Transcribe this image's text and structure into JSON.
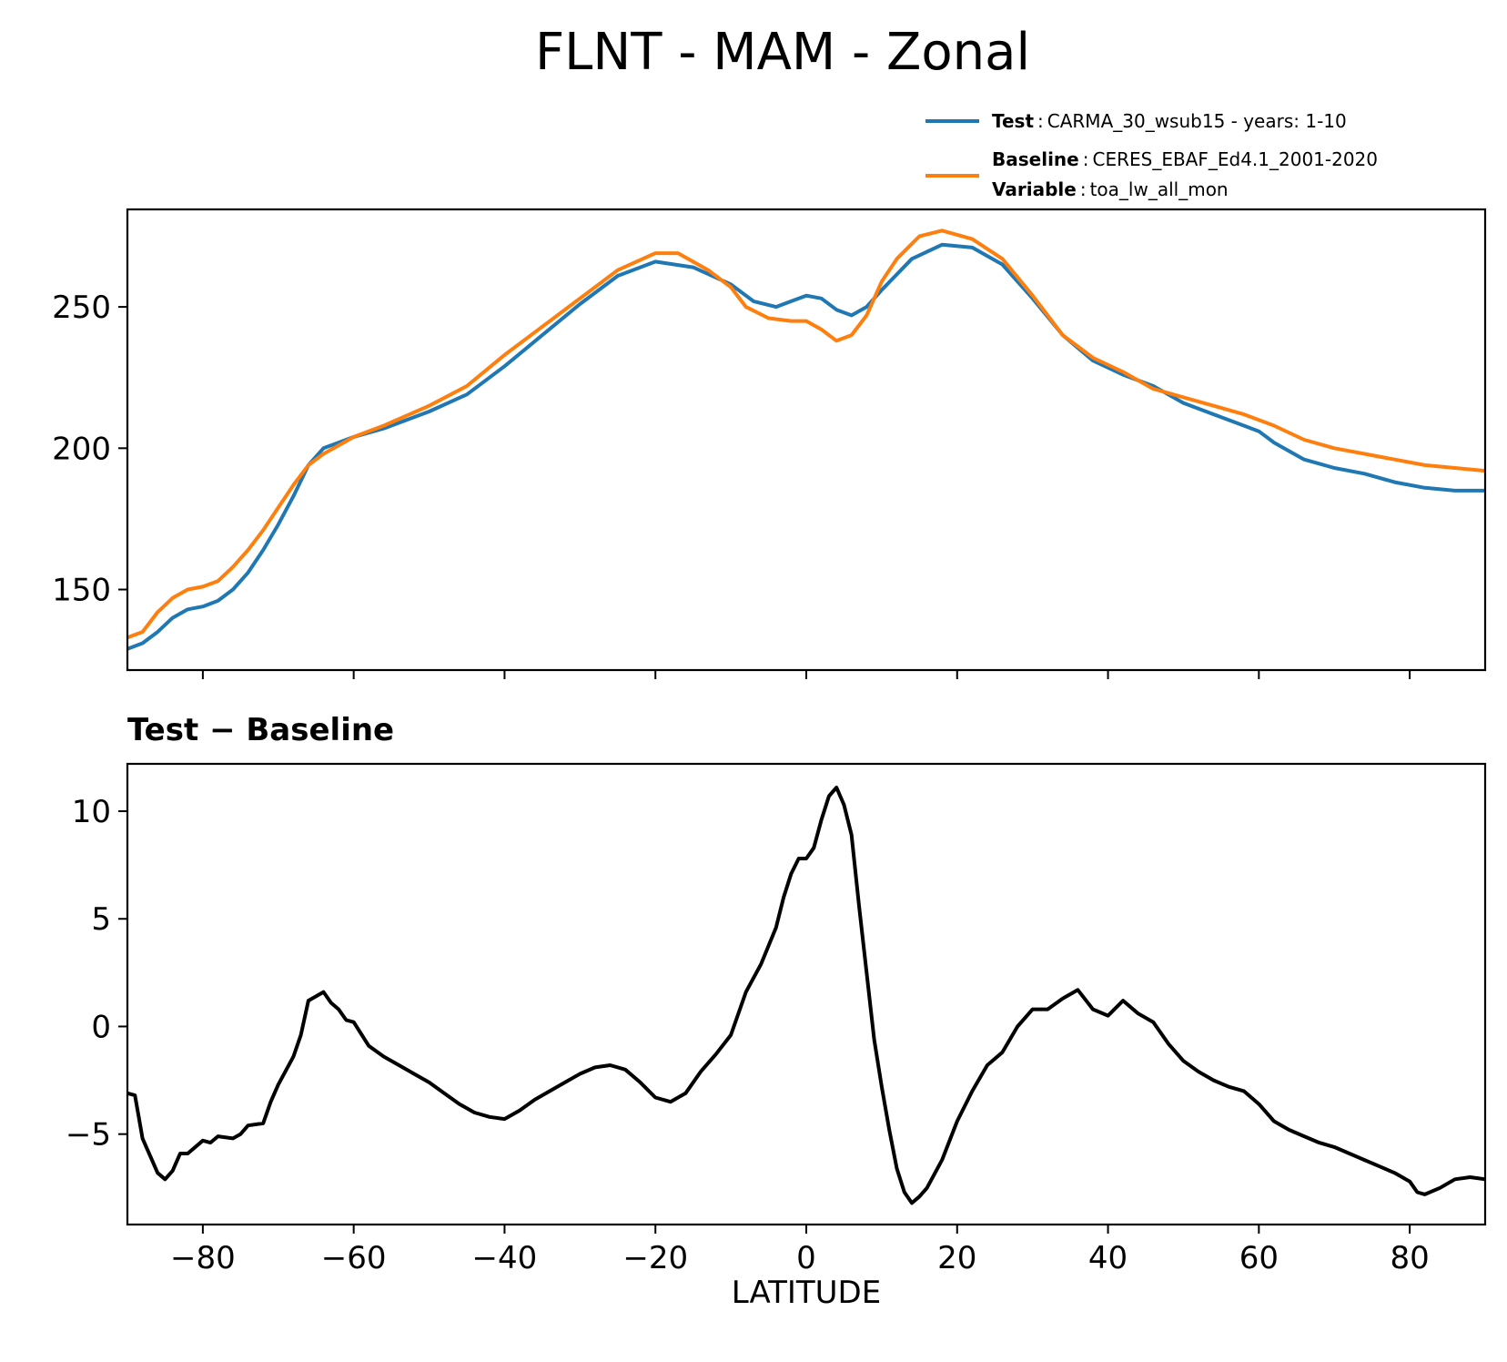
{
  "figure": {
    "title": "FLNT - MAM - Zonal"
  },
  "legend": {
    "placement": "above-right of top panel",
    "test_key": "Test",
    "test_value": "CARMA_30_wsub15 - years: 1-10",
    "baseline_key": "Baseline",
    "baseline_value": "CERES_EBAF_Ed4.1_2001-2020",
    "variable_key": "Variable",
    "variable_value": "toa_lw_all_mon",
    "separator": ":"
  },
  "chart_data": [
    {
      "type": "line",
      "title": "",
      "xlabel": "",
      "ylabel": "",
      "xlim": [
        -90,
        90
      ],
      "ylim": [
        121.5,
        284.5
      ],
      "yticks": [
        150,
        200,
        250
      ],
      "xticks": [
        -80,
        -60,
        -40,
        -20,
        0,
        20,
        40,
        60,
        80
      ],
      "grid": false,
      "series": [
        {
          "name": "Test",
          "color": "#1f77b4",
          "points": [
            [
              -90,
              129
            ],
            [
              -88,
              131
            ],
            [
              -86,
              135
            ],
            [
              -84,
              140
            ],
            [
              -82,
              143
            ],
            [
              -80,
              144
            ],
            [
              -78,
              146
            ],
            [
              -76,
              150
            ],
            [
              -74,
              156
            ],
            [
              -72,
              164
            ],
            [
              -70,
              173
            ],
            [
              -68,
              183
            ],
            [
              -66,
              194
            ],
            [
              -64,
              200
            ],
            [
              -62,
              202
            ],
            [
              -60,
              204
            ],
            [
              -56,
              207
            ],
            [
              -50,
              213
            ],
            [
              -45,
              219
            ],
            [
              -40,
              229
            ],
            [
              -35,
              240
            ],
            [
              -30,
              251
            ],
            [
              -25,
              261
            ],
            [
              -20,
              266
            ],
            [
              -15,
              264
            ],
            [
              -10,
              258
            ],
            [
              -7,
              252
            ],
            [
              -4,
              250
            ],
            [
              -2,
              252
            ],
            [
              0,
              254
            ],
            [
              2,
              253
            ],
            [
              4,
              249
            ],
            [
              6,
              247
            ],
            [
              8,
              250
            ],
            [
              10,
              256
            ],
            [
              14,
              267
            ],
            [
              18,
              272
            ],
            [
              22,
              271
            ],
            [
              26,
              265
            ],
            [
              30,
              253
            ],
            [
              34,
              240
            ],
            [
              38,
              231
            ],
            [
              42,
              226
            ],
            [
              46,
              222
            ],
            [
              50,
              216
            ],
            [
              54,
              212
            ],
            [
              58,
              208
            ],
            [
              60,
              206
            ],
            [
              62,
              202
            ],
            [
              66,
              196
            ],
            [
              70,
              193
            ],
            [
              74,
              191
            ],
            [
              78,
              188
            ],
            [
              82,
              186
            ],
            [
              86,
              185
            ],
            [
              90,
              185
            ]
          ]
        },
        {
          "name": "Baseline",
          "color": "#ff7f0e",
          "points": [
            [
              -90,
              133
            ],
            [
              -88,
              135
            ],
            [
              -86,
              142
            ],
            [
              -84,
              147
            ],
            [
              -82,
              150
            ],
            [
              -80,
              151
            ],
            [
              -78,
              153
            ],
            [
              -76,
              158
            ],
            [
              -74,
              164
            ],
            [
              -72,
              171
            ],
            [
              -70,
              179
            ],
            [
              -68,
              187
            ],
            [
              -66,
              194
            ],
            [
              -64,
              198
            ],
            [
              -62,
              201
            ],
            [
              -60,
              204
            ],
            [
              -56,
              208
            ],
            [
              -50,
              215
            ],
            [
              -45,
              222
            ],
            [
              -40,
              233
            ],
            [
              -35,
              243
            ],
            [
              -30,
              253
            ],
            [
              -25,
              263
            ],
            [
              -20,
              269
            ],
            [
              -17,
              269
            ],
            [
              -13,
              263
            ],
            [
              -10,
              257
            ],
            [
              -8,
              250
            ],
            [
              -5,
              246
            ],
            [
              -2,
              245
            ],
            [
              0,
              245
            ],
            [
              2,
              242
            ],
            [
              4,
              238
            ],
            [
              6,
              240
            ],
            [
              8,
              247
            ],
            [
              10,
              259
            ],
            [
              12,
              267
            ],
            [
              15,
              275
            ],
            [
              18,
              277
            ],
            [
              22,
              274
            ],
            [
              26,
              267
            ],
            [
              30,
              254
            ],
            [
              34,
              240
            ],
            [
              38,
              232
            ],
            [
              42,
              227
            ],
            [
              46,
              221
            ],
            [
              50,
              218
            ],
            [
              54,
              215
            ],
            [
              58,
              212
            ],
            [
              62,
              208
            ],
            [
              66,
              203
            ],
            [
              70,
              200
            ],
            [
              74,
              198
            ],
            [
              78,
              196
            ],
            [
              82,
              194
            ],
            [
              86,
              193
            ],
            [
              90,
              192
            ]
          ]
        }
      ]
    },
    {
      "type": "line",
      "title": "Test − Baseline",
      "xlabel": "LATITUDE",
      "ylabel": "",
      "xlim": [
        -90,
        90
      ],
      "ylim": [
        -9.2,
        12.2
      ],
      "yticks": [
        -5,
        0,
        5,
        10
      ],
      "xticks": [
        -80,
        -60,
        -40,
        -20,
        0,
        20,
        40,
        60,
        80
      ],
      "xticklabels": [
        "−80",
        "−60",
        "−40",
        "−20",
        "0",
        "20",
        "40",
        "60",
        "80"
      ],
      "yticklabels": [
        "−5",
        "0",
        "5",
        "10"
      ],
      "grid": false,
      "series": [
        {
          "color": "#000000",
          "points": [
            [
              -90,
              -3.1
            ],
            [
              -89,
              -3.2
            ],
            [
              -88,
              -5.2
            ],
            [
              -86,
              -6.8
            ],
            [
              -85,
              -7.1
            ],
            [
              -84,
              -6.7
            ],
            [
              -83,
              -5.9
            ],
            [
              -82,
              -5.9
            ],
            [
              -80,
              -5.3
            ],
            [
              -79,
              -5.4
            ],
            [
              -78,
              -5.1
            ],
            [
              -76,
              -5.2
            ],
            [
              -75,
              -5.0
            ],
            [
              -74,
              -4.6
            ],
            [
              -72,
              -4.5
            ],
            [
              -71,
              -3.5
            ],
            [
              -70,
              -2.7
            ],
            [
              -68,
              -1.4
            ],
            [
              -67,
              -0.4
            ],
            [
              -66,
              1.2
            ],
            [
              -64,
              1.6
            ],
            [
              -63,
              1.1
            ],
            [
              -62,
              0.8
            ],
            [
              -61,
              0.3
            ],
            [
              -60,
              0.2
            ],
            [
              -58,
              -0.9
            ],
            [
              -56,
              -1.4
            ],
            [
              -54,
              -1.8
            ],
            [
              -52,
              -2.2
            ],
            [
              -50,
              -2.6
            ],
            [
              -48,
              -3.1
            ],
            [
              -46,
              -3.6
            ],
            [
              -44,
              -4.0
            ],
            [
              -42,
              -4.2
            ],
            [
              -40,
              -4.3
            ],
            [
              -38,
              -3.9
            ],
            [
              -36,
              -3.4
            ],
            [
              -34,
              -3.0
            ],
            [
              -32,
              -2.6
            ],
            [
              -30,
              -2.2
            ],
            [
              -28,
              -1.9
            ],
            [
              -26,
              -1.8
            ],
            [
              -24,
              -2.0
            ],
            [
              -22,
              -2.6
            ],
            [
              -20,
              -3.3
            ],
            [
              -18,
              -3.5
            ],
            [
              -16,
              -3.1
            ],
            [
              -14,
              -2.1
            ],
            [
              -12,
              -1.3
            ],
            [
              -10,
              -0.4
            ],
            [
              -8,
              1.6
            ],
            [
              -6,
              2.9
            ],
            [
              -4,
              4.6
            ],
            [
              -3,
              6.0
            ],
            [
              -2,
              7.1
            ],
            [
              -1,
              7.8
            ],
            [
              0,
              7.8
            ],
            [
              1,
              8.3
            ],
            [
              2,
              9.6
            ],
            [
              3,
              10.7
            ],
            [
              4,
              11.1
            ],
            [
              5,
              10.3
            ],
            [
              6,
              8.9
            ],
            [
              7,
              5.6
            ],
            [
              8,
              2.5
            ],
            [
              9,
              -0.6
            ],
            [
              10,
              -2.8
            ],
            [
              11,
              -4.8
            ],
            [
              12,
              -6.6
            ],
            [
              13,
              -7.7
            ],
            [
              14,
              -8.2
            ],
            [
              15,
              -7.9
            ],
            [
              16,
              -7.5
            ],
            [
              18,
              -6.2
            ],
            [
              20,
              -4.4
            ],
            [
              22,
              -3.0
            ],
            [
              24,
              -1.8
            ],
            [
              26,
              -1.2
            ],
            [
              28,
              0.0
            ],
            [
              30,
              0.8
            ],
            [
              32,
              0.8
            ],
            [
              34,
              1.3
            ],
            [
              36,
              1.7
            ],
            [
              38,
              0.8
            ],
            [
              40,
              0.5
            ],
            [
              42,
              1.2
            ],
            [
              44,
              0.6
            ],
            [
              46,
              0.2
            ],
            [
              48,
              -0.8
            ],
            [
              50,
              -1.6
            ],
            [
              52,
              -2.1
            ],
            [
              54,
              -2.5
            ],
            [
              56,
              -2.8
            ],
            [
              58,
              -3.0
            ],
            [
              60,
              -3.6
            ],
            [
              62,
              -4.4
            ],
            [
              64,
              -4.8
            ],
            [
              66,
              -5.1
            ],
            [
              68,
              -5.4
            ],
            [
              70,
              -5.6
            ],
            [
              72,
              -5.9
            ],
            [
              74,
              -6.2
            ],
            [
              76,
              -6.5
            ],
            [
              78,
              -6.8
            ],
            [
              80,
              -7.2
            ],
            [
              81,
              -7.7
            ],
            [
              82,
              -7.8
            ],
            [
              84,
              -7.5
            ],
            [
              86,
              -7.1
            ],
            [
              88,
              -7.0
            ],
            [
              90,
              -7.1
            ]
          ]
        }
      ]
    }
  ]
}
